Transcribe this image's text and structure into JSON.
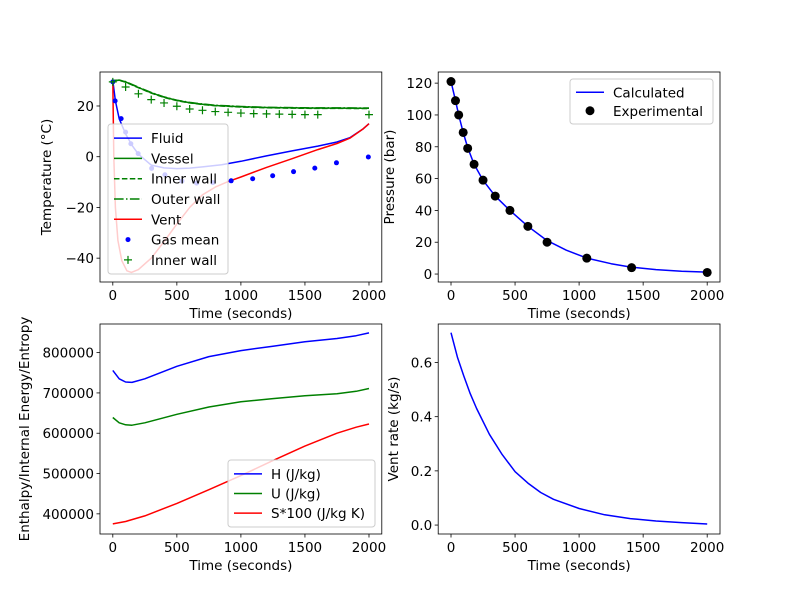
{
  "chart_data": [
    {
      "type": "line",
      "xlabel": "Time (seconds)",
      "ylabel": "Temperature ($^\\circ$C)",
      "ylabel_display": "Temperature (°C)",
      "xlim": [
        -100,
        2100
      ],
      "ylim": [
        -49.4,
        33.4
      ],
      "xticks": [
        0,
        500,
        1000,
        1500,
        2000
      ],
      "xtick_labels": [
        "0",
        "500",
        "1000",
        "1500",
        "2000"
      ],
      "yticks": [
        -40,
        -20,
        0,
        20
      ],
      "ytick_labels": [
        "−40",
        "−20",
        "0",
        "20"
      ],
      "grid": false,
      "legend": "lower-left",
      "series": [
        {
          "name": "Fluid",
          "color": "#0000ff",
          "style": "solid",
          "x": [
            0,
            20,
            50,
            100,
            150,
            200,
            300,
            400,
            500,
            600,
            700,
            850,
            1000,
            1200,
            1400,
            1600,
            1750,
            1850,
            1950,
            2000
          ],
          "y": [
            30,
            22,
            15,
            9,
            4.5,
            1,
            -3.3,
            -4.4,
            -4.7,
            -4.5,
            -4,
            -3.2,
            -1.8,
            0.3,
            2.3,
            4.2,
            5.8,
            7.5,
            10.8,
            13
          ]
        },
        {
          "name": "Vessel",
          "color": "#008000",
          "style": "solid",
          "x": [
            0,
            50,
            100,
            200,
            300,
            400,
            500,
            600,
            700,
            800,
            1000,
            1200,
            1500,
            2000
          ],
          "y": [
            30,
            30.2,
            29.5,
            27.3,
            25.2,
            23.5,
            22.2,
            21.3,
            20.7,
            20.2,
            19.7,
            19.4,
            19.2,
            19.1
          ]
        },
        {
          "name": "Inner wall",
          "color": "#008000",
          "style": "dashed",
          "x": [
            0,
            50,
            100,
            200,
            300,
            400,
            500,
            600,
            700,
            800,
            1000,
            1200,
            1500,
            2000
          ],
          "y": [
            30,
            30.1,
            29.4,
            27.2,
            25.1,
            23.4,
            22.1,
            21.2,
            20.6,
            20.1,
            19.6,
            19.3,
            19.1,
            19.0
          ]
        },
        {
          "name": "Outer wall",
          "color": "#008000",
          "style": "dashdot",
          "x": [
            0,
            50,
            100,
            200,
            300,
            400,
            500,
            600,
            700,
            800,
            1000,
            1200,
            1500,
            2000
          ],
          "y": [
            30,
            30.2,
            29.6,
            27.4,
            25.3,
            23.6,
            22.3,
            21.4,
            20.8,
            20.3,
            19.8,
            19.5,
            19.3,
            19.2
          ]
        },
        {
          "name": "Vent",
          "color": "#ff0000",
          "style": "solid",
          "x": [
            0,
            8,
            20,
            40,
            70,
            110,
            145,
            200,
            300,
            400,
            500,
            600,
            700,
            800,
            900,
            1000,
            1200,
            1400,
            1600,
            1750,
            1850,
            1950,
            2000
          ],
          "y": [
            30,
            0,
            -20,
            -33,
            -41,
            -45,
            -45.6,
            -44.5,
            -40,
            -33.5,
            -26.5,
            -20,
            -15,
            -12,
            -9.8,
            -8,
            -4.2,
            -0.8,
            2.8,
            5.2,
            7.3,
            10.8,
            13
          ]
        },
        {
          "name": "Gas mean",
          "color": "#0000ff",
          "style": "dot",
          "x": [
            0,
            18,
            65,
            100,
            141,
            198,
            303,
            407,
            540,
            654,
            781,
            924,
            1092,
            1248,
            1411,
            1577,
            1746,
            1995
          ],
          "y": [
            29.5,
            22,
            15,
            9.7,
            5.1,
            1.2,
            -4.6,
            -7.1,
            -9.6,
            -10.4,
            -10.2,
            -9.5,
            -8.7,
            -7.5,
            -5.9,
            -4.5,
            -2.4,
            -0.1
          ]
        },
        {
          "name": "Inner wall",
          "color": "#008000",
          "style": "plus",
          "x": [
            0,
            100,
            200,
            300,
            400,
            500,
            600,
            700,
            800,
            900,
            1000,
            1100,
            1200,
            1300,
            1400,
            1500,
            1600,
            2000
          ],
          "y": [
            29.5,
            27.5,
            24.8,
            22.5,
            21.2,
            19.9,
            18.8,
            18.3,
            17.8,
            17.5,
            17.2,
            17,
            16.9,
            16.8,
            16.7,
            16.6,
            16.6,
            16.6
          ]
        }
      ]
    },
    {
      "type": "line",
      "xlabel": "Time (seconds)",
      "ylabel": "Pressure (bar)",
      "ylabel_display": "Pressure (bar)",
      "xlim": [
        -100,
        2100
      ],
      "ylim": [
        -5,
        127
      ],
      "xticks": [
        0,
        500,
        1000,
        1500,
        2000
      ],
      "xtick_labels": [
        "0",
        "500",
        "1000",
        "1500",
        "2000"
      ],
      "yticks": [
        0,
        20,
        40,
        60,
        80,
        100,
        120
      ],
      "ytick_labels": [
        "0",
        "20",
        "40",
        "60",
        "80",
        "100",
        "120"
      ],
      "grid": false,
      "legend": "upper-right",
      "series": [
        {
          "name": "Calculated",
          "color": "#0000ff",
          "style": "solid",
          "x": [
            0,
            35,
            60,
            95,
            130,
            180,
            250,
            345,
            460,
            600,
            750,
            900,
            1060,
            1250,
            1410,
            1600,
            1800,
            2000
          ],
          "y": [
            121,
            109,
            100,
            89,
            79.5,
            69,
            59,
            49,
            40,
            30,
            21,
            15,
            10,
            6.5,
            4.3,
            2.8,
            1.8,
            1.2
          ]
        },
        {
          "name": "Experimental",
          "color": "#000000",
          "style": "bigdot",
          "x": [
            0,
            35,
            60,
            95,
            130,
            180,
            250,
            345,
            460,
            600,
            750,
            1060,
            1410,
            2000
          ],
          "y": [
            121,
            109,
            100,
            89,
            79,
            69,
            59,
            49,
            40,
            30,
            20,
            10,
            4,
            1
          ]
        }
      ]
    },
    {
      "type": "line",
      "xlabel": "Time (seconds)",
      "ylabel": "Enthalpy/Internal Energy/Entropy",
      "ylabel_display": "Enthalpy/Internal Energy/Entropy",
      "xlim": [
        -100,
        2100
      ],
      "ylim": [
        350000,
        871000
      ],
      "xticks": [
        0,
        500,
        1000,
        1500,
        2000
      ],
      "xtick_labels": [
        "0",
        "500",
        "1000",
        "1500",
        "2000"
      ],
      "yticks": [
        400000,
        500000,
        600000,
        700000,
        800000
      ],
      "ytick_labels": [
        "400000",
        "500000",
        "600000",
        "700000",
        "800000"
      ],
      "grid": false,
      "legend": "lower-right",
      "series": [
        {
          "name": "H (J/kg)",
          "color": "#0000ff",
          "style": "solid",
          "x": [
            0,
            50,
            100,
            150,
            250,
            500,
            750,
            1000,
            1250,
            1500,
            1750,
            1900,
            2000
          ],
          "y": [
            756000,
            735000,
            727000,
            726000,
            735000,
            766000,
            790000,
            805000,
            816000,
            827000,
            835000,
            842000,
            849000
          ]
        },
        {
          "name": "U (J/kg)",
          "color": "#008000",
          "style": "solid",
          "x": [
            0,
            50,
            100,
            150,
            250,
            500,
            750,
            1000,
            1250,
            1500,
            1750,
            1900,
            2000
          ],
          "y": [
            639000,
            626000,
            621000,
            620000,
            626000,
            647000,
            665000,
            678000,
            686000,
            693000,
            698000,
            704000,
            711000
          ]
        },
        {
          "name": "S*100 (J/kg K)",
          "color": "#ff0000",
          "style": "solid",
          "x": [
            0,
            100,
            250,
            500,
            750,
            1000,
            1250,
            1500,
            1750,
            1900,
            2000
          ],
          "y": [
            375000,
            381000,
            395000,
            426000,
            460000,
            495000,
            532000,
            568000,
            600000,
            615000,
            623000
          ]
        }
      ]
    },
    {
      "type": "line",
      "xlabel": "Time (seconds)",
      "ylabel": "Vent rate (kg/s)",
      "ylabel_display": "Vent rate (kg/s)",
      "xlim": [
        -100,
        2100
      ],
      "ylim": [
        -0.033,
        0.742
      ],
      "xticks": [
        0,
        500,
        1000,
        1500,
        2000
      ],
      "xtick_labels": [
        "0",
        "500",
        "1000",
        "1500",
        "2000"
      ],
      "yticks": [
        0,
        0.2,
        0.4,
        0.6
      ],
      "ytick_labels": [
        "0.0",
        "0.2",
        "0.4",
        "0.6"
      ],
      "grid": false,
      "series": [
        {
          "color": "#0000ff",
          "style": "solid",
          "x": [
            0,
            50,
            100,
            150,
            200,
            300,
            400,
            500,
            600,
            700,
            800,
            1000,
            1200,
            1400,
            1600,
            1800,
            2000
          ],
          "y": [
            0.71,
            0.62,
            0.55,
            0.485,
            0.43,
            0.335,
            0.26,
            0.197,
            0.155,
            0.12,
            0.095,
            0.061,
            0.038,
            0.024,
            0.015,
            0.009,
            0.004
          ]
        }
      ]
    }
  ]
}
